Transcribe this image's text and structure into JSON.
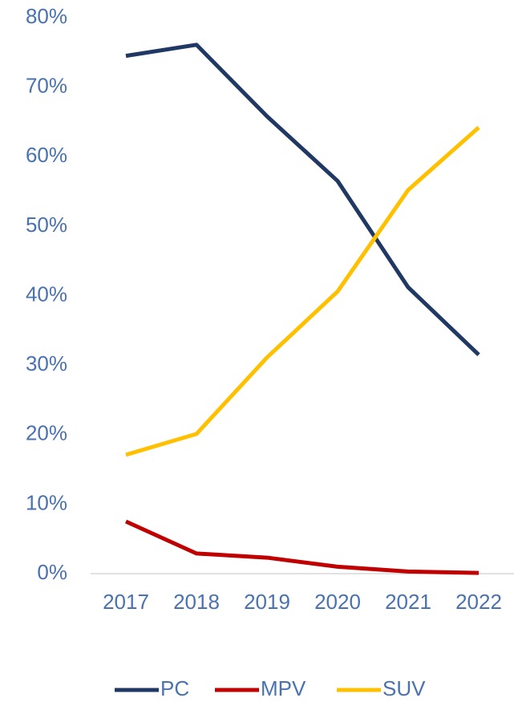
{
  "chart_data": {
    "type": "line",
    "categories": [
      "2017",
      "2018",
      "2019",
      "2020",
      "2021",
      "2022"
    ],
    "series": [
      {
        "name": "PC",
        "color": "#203864",
        "values": [
          74.5,
          76.1,
          65.8,
          56.5,
          41.2,
          31.5
        ]
      },
      {
        "name": "MPV",
        "color": "#c00000",
        "values": [
          7.5,
          2.9,
          2.3,
          1.0,
          0.3,
          0.1
        ]
      },
      {
        "name": "SUV",
        "color": "#ffc000",
        "values": [
          17.1,
          20.1,
          31.1,
          40.6,
          55.2,
          64.2
        ]
      }
    ],
    "ylim": [
      0,
      80
    ],
    "yticks": [
      {
        "value": 0,
        "label": "0%"
      },
      {
        "value": 10,
        "label": "10%"
      },
      {
        "value": 20,
        "label": "20%"
      },
      {
        "value": 30,
        "label": "30%"
      },
      {
        "value": 40,
        "label": "40%"
      },
      {
        "value": 50,
        "label": "50%"
      },
      {
        "value": 60,
        "label": "60%"
      },
      {
        "value": 70,
        "label": "70%"
      },
      {
        "value": 80,
        "label": "80%"
      }
    ],
    "grid": false,
    "legend": "bottom"
  }
}
